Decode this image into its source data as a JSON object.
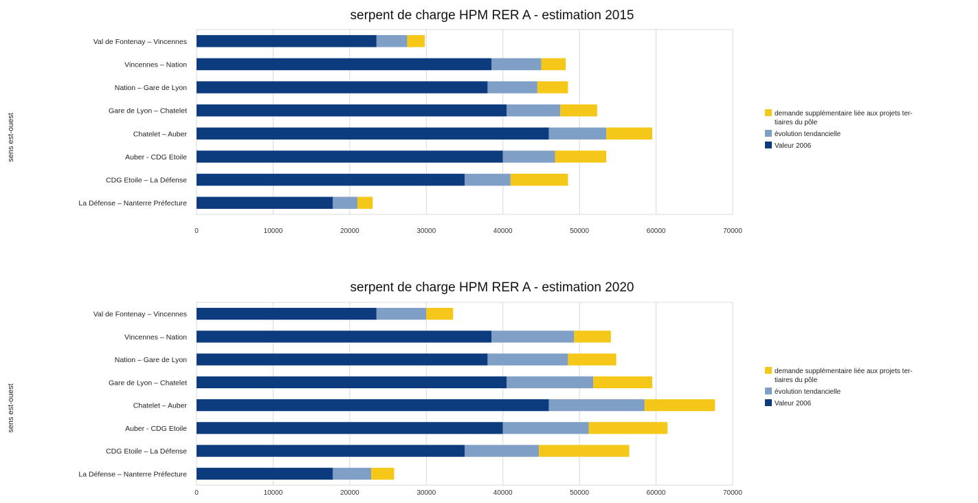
{
  "colors": {
    "valeur_2006": "#0d3c7e",
    "evolution": "#7f9fc7",
    "demande": "#f5c718",
    "grid": "#d9d9d9"
  },
  "chart_data": [
    {
      "type": "bar",
      "orientation": "horizontal",
      "stacked": true,
      "title": "serpent de charge HPM RER A - estimation 2015",
      "ylabel": "sens est-ouest",
      "xlabel": "",
      "xlim": [
        0,
        70000
      ],
      "xticks": [
        "0",
        "10000",
        "20000",
        "30000",
        "40000",
        "50000",
        "60000",
        "70000"
      ],
      "grid": true,
      "legend_position": "right",
      "categories": [
        "Val de Fontenay – Vincennes",
        "Vincennes – Nation",
        "Nation – Gare de Lyon",
        "Gare de Lyon – Chatelet",
        "Chatelet – Auber",
        "Auber - CDG Etoile",
        "CDG Etoile – La Défense",
        "La Défense – Nanterre Préfecture"
      ],
      "series": [
        {
          "name": "Valeur 2006",
          "values": [
            23500,
            38500,
            38000,
            40500,
            46000,
            40000,
            35000,
            17800
          ]
        },
        {
          "name": "évolution tendancielle",
          "values": [
            4000,
            6500,
            6500,
            7000,
            7500,
            6800,
            6000,
            3200
          ]
        },
        {
          "name": "demande supplémentaire liée aux projets tertiaires du pôle",
          "values": [
            2300,
            3200,
            4000,
            4800,
            6000,
            6700,
            7500,
            2000
          ]
        }
      ],
      "legend": [
        {
          "lines": [
            "demande supplémentaire liée aux projets ter-",
            "tiaires du pôle"
          ],
          "color_key": "demande"
        },
        {
          "lines": [
            "évolution tendancielle"
          ],
          "color_key": "evolution"
        },
        {
          "lines": [
            "Valeur 2006"
          ],
          "color_key": "valeur_2006"
        }
      ]
    },
    {
      "type": "bar",
      "orientation": "horizontal",
      "stacked": true,
      "title": "serpent de charge HPM RER A - estimation 2020",
      "ylabel": "sens est-ouest",
      "xlabel": "",
      "xlim": [
        0,
        70000
      ],
      "xticks": [
        "0",
        "10000",
        "20000",
        "30000",
        "40000",
        "50000",
        "60000",
        "70000"
      ],
      "grid": true,
      "legend_position": "right",
      "categories": [
        "Val de Fontenay – Vincennes",
        "Vincennes – Nation",
        "Nation – Gare de Lyon",
        "Gare de Lyon – Chatelet",
        "Chatelet – Auber",
        "Auber - CDG Etoile",
        "CDG Etoile – La Défense",
        "La Défense – Nanterre Préfecture"
      ],
      "series": [
        {
          "name": "Valeur 2006",
          "values": [
            23500,
            38500,
            38000,
            40500,
            46000,
            40000,
            35000,
            17800
          ]
        },
        {
          "name": "évolution tendancielle",
          "values": [
            6500,
            10800,
            10500,
            11300,
            12500,
            11200,
            9700,
            5000
          ]
        },
        {
          "name": "demande supplémentaire liée aux projets tertiaires du pôle",
          "values": [
            3500,
            4800,
            6300,
            7700,
            9200,
            10300,
            11800,
            3000
          ]
        }
      ],
      "legend": [
        {
          "lines": [
            "demande supplémentaire liée aux projets ter-",
            "tiaires du pôle"
          ],
          "color_key": "demande"
        },
        {
          "lines": [
            "évolution tendancielle"
          ],
          "color_key": "evolution"
        },
        {
          "lines": [
            "Valeur 2006"
          ],
          "color_key": "valeur_2006"
        }
      ]
    }
  ]
}
